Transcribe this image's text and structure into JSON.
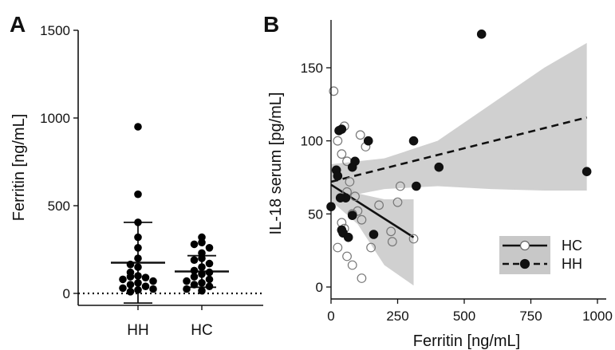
{
  "chart_data": [
    {
      "panel": "A",
      "type": "scatter",
      "subtype": "dot-plot-with-error-bars",
      "categories": [
        "HH",
        "HC"
      ],
      "ylabel": "Ferritin [ng/mL]",
      "xlabel": "",
      "ylim": [
        0,
        1500
      ],
      "yticks": [
        0,
        500,
        1000,
        1500
      ],
      "reference_line": {
        "y": 0,
        "style": "dotted"
      },
      "series": [
        {
          "category": "HH",
          "mean": 175,
          "error_low": -55,
          "error_high": 405,
          "points": [
            950,
            565,
            405,
            320,
            260,
            200,
            165,
            150,
            120,
            100,
            95,
            90,
            80,
            70,
            60,
            50,
            40,
            30,
            25,
            20,
            10
          ]
        },
        {
          "category": "HC",
          "mean": 125,
          "error_low": 35,
          "error_high": 215,
          "points": [
            320,
            290,
            280,
            260,
            230,
            200,
            190,
            170,
            150,
            130,
            120,
            110,
            95,
            80,
            70,
            60,
            50,
            40,
            25,
            15
          ]
        }
      ],
      "grid": false,
      "colors": {
        "points": "#000000",
        "error": "#000000"
      }
    },
    {
      "panel": "B",
      "type": "scatter",
      "xlabel": "Ferritin [ng/mL]",
      "ylabel": "IL-18 serum [pg/mL]",
      "xlim": [
        0,
        1000
      ],
      "ylim": [
        -10,
        180
      ],
      "xticks": [
        0,
        250,
        500,
        750,
        1000
      ],
      "yticks": [
        0,
        50,
        100,
        150
      ],
      "legend_position": "bottom-right",
      "grid": false,
      "series": [
        {
          "name": "HC",
          "marker": "open-circle",
          "line_style": "solid",
          "regression": {
            "x": [
              0,
              310
            ],
            "y": [
              70,
              34
            ]
          },
          "band_upper": [
            {
              "x": 0,
              "y": 80
            },
            {
              "x": 100,
              "y": 64
            },
            {
              "x": 200,
              "y": 60
            },
            {
              "x": 310,
              "y": 60
            }
          ],
          "band_lower": [
            {
              "x": 0,
              "y": 59
            },
            {
              "x": 100,
              "y": 43
            },
            {
              "x": 200,
              "y": 15
            },
            {
              "x": 310,
              "y": 1
            }
          ],
          "points": [
            {
              "x": 10,
              "y": 134
            },
            {
              "x": 25,
              "y": 100
            },
            {
              "x": 50,
              "y": 110
            },
            {
              "x": 40,
              "y": 91
            },
            {
              "x": 110,
              "y": 104
            },
            {
              "x": 130,
              "y": 96
            },
            {
              "x": 60,
              "y": 86
            },
            {
              "x": 70,
              "y": 72
            },
            {
              "x": 90,
              "y": 62
            },
            {
              "x": 60,
              "y": 65
            },
            {
              "x": 260,
              "y": 69
            },
            {
              "x": 250,
              "y": 58
            },
            {
              "x": 180,
              "y": 56
            },
            {
              "x": 100,
              "y": 52
            },
            {
              "x": 80,
              "y": 50
            },
            {
              "x": 115,
              "y": 46
            },
            {
              "x": 40,
              "y": 44
            },
            {
              "x": 50,
              "y": 40
            },
            {
              "x": 225,
              "y": 38
            },
            {
              "x": 230,
              "y": 31
            },
            {
              "x": 310,
              "y": 33
            },
            {
              "x": 150,
              "y": 27
            },
            {
              "x": 25,
              "y": 27
            },
            {
              "x": 60,
              "y": 21
            },
            {
              "x": 80,
              "y": 15
            },
            {
              "x": 115,
              "y": 6
            }
          ]
        },
        {
          "name": "HH",
          "marker": "filled-circle",
          "line_style": "dashed",
          "regression": {
            "x": [
              0,
              960
            ],
            "y": [
              72,
              116
            ]
          },
          "band_upper": [
            {
              "x": 0,
              "y": 84
            },
            {
              "x": 200,
              "y": 88
            },
            {
              "x": 400,
              "y": 100
            },
            {
              "x": 600,
              "y": 125
            },
            {
              "x": 800,
              "y": 150
            },
            {
              "x": 960,
              "y": 167
            }
          ],
          "band_lower": [
            {
              "x": 0,
              "y": 60
            },
            {
              "x": 200,
              "y": 67
            },
            {
              "x": 400,
              "y": 69
            },
            {
              "x": 600,
              "y": 67
            },
            {
              "x": 800,
              "y": 66
            },
            {
              "x": 960,
              "y": 66
            }
          ],
          "points": [
            {
              "x": 565,
              "y": 173
            },
            {
              "x": 960,
              "y": 79
            },
            {
              "x": 405,
              "y": 82
            },
            {
              "x": 320,
              "y": 69
            },
            {
              "x": 310,
              "y": 100
            },
            {
              "x": 140,
              "y": 100
            },
            {
              "x": 40,
              "y": 108
            },
            {
              "x": 30,
              "y": 107
            },
            {
              "x": 90,
              "y": 86
            },
            {
              "x": 80,
              "y": 82
            },
            {
              "x": 20,
              "y": 80
            },
            {
              "x": 25,
              "y": 76
            },
            {
              "x": 55,
              "y": 61
            },
            {
              "x": 35,
              "y": 61
            },
            {
              "x": 0,
              "y": 55
            },
            {
              "x": 80,
              "y": 49
            },
            {
              "x": 160,
              "y": 36
            },
            {
              "x": 40,
              "y": 39
            },
            {
              "x": 45,
              "y": 37
            },
            {
              "x": 65,
              "y": 34
            }
          ]
        }
      ]
    }
  ],
  "labels": {
    "panel_a": "A",
    "panel_b": "B"
  }
}
